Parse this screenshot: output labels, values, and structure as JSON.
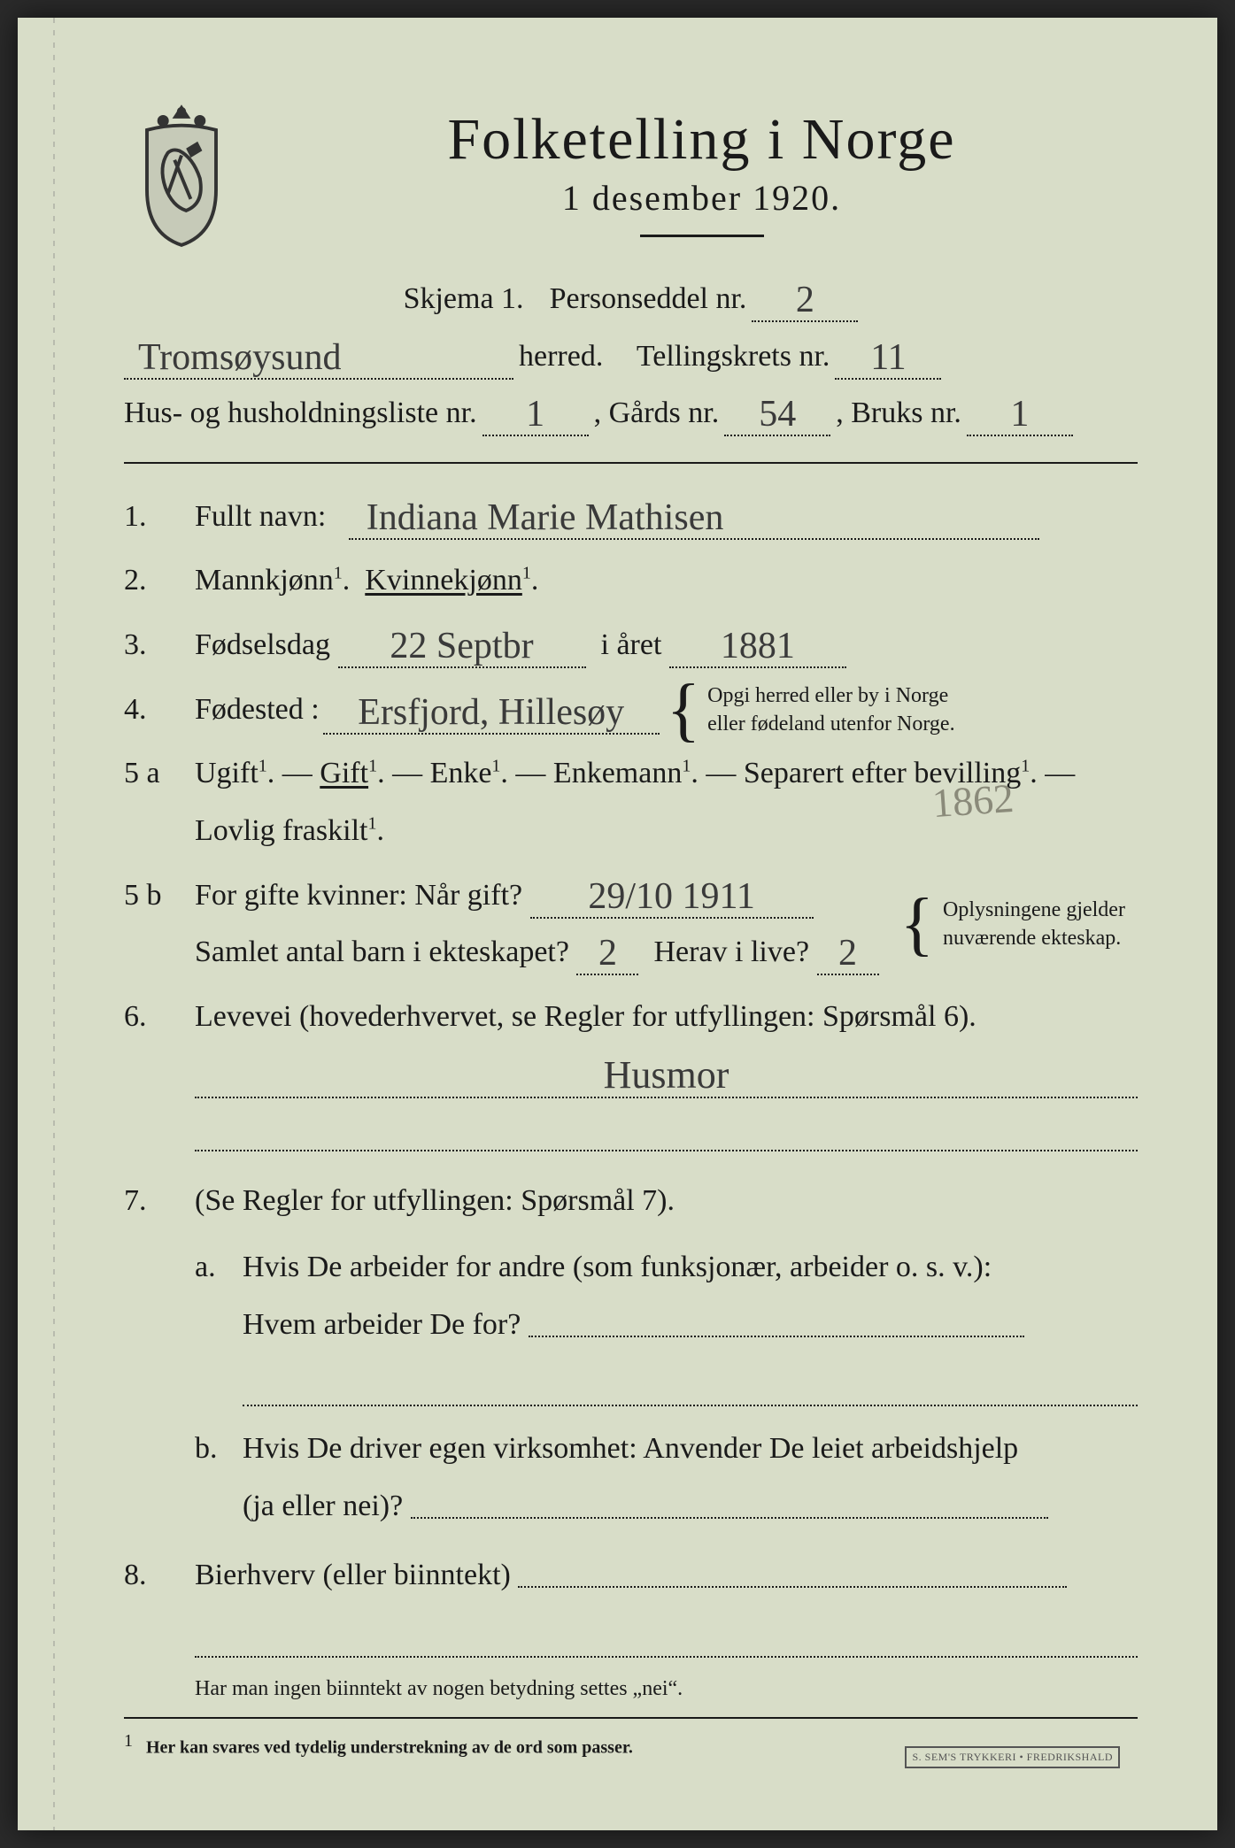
{
  "colors": {
    "paper": "#d8ddc8",
    "ink": "#1a1a1a",
    "handwriting": "#3a3a3a",
    "faint": "#8a8a7a"
  },
  "header": {
    "title": "Folketelling i Norge",
    "subtitle": "1 desember 1920."
  },
  "meta": {
    "skjema_label": "Skjema 1.",
    "personseddel_label": "Personseddel nr.",
    "personseddel_nr": "2",
    "herred_value": "Tromsøysund",
    "herred_label": "herred.",
    "tellingskrets_label": "Tellingskrets nr.",
    "tellingskrets_nr": "11",
    "hus_label": "Hus- og husholdningsliste nr.",
    "hus_nr": "1",
    "gards_label": ", Gårds nr.",
    "gards_nr": "54",
    "bruks_label": ", Bruks nr.",
    "bruks_nr": "1"
  },
  "q1": {
    "num": "1.",
    "label": "Fullt navn:",
    "value": "Indiana Marie Mathisen"
  },
  "q2": {
    "num": "2.",
    "opt_male": "Mannkjønn",
    "opt_female": "Kvinnekjønn",
    "sup": "1",
    "dot": "."
  },
  "q3": {
    "num": "3.",
    "label": "Fødselsdag",
    "day_value": "22 Septbr",
    "year_label": "i året",
    "year_value": "1881"
  },
  "q4": {
    "num": "4.",
    "label": "Fødested :",
    "value": "Ersfjord, Hillesøy",
    "sidenote": "Opgi herred eller by i Norge eller fødeland utenfor Norge."
  },
  "q5a": {
    "num": "5 a",
    "opts": [
      "Ugift",
      "Gift",
      "Enke",
      "Enkemann",
      "Separert efter bevilling",
      "Lovlig fraskilt"
    ],
    "sup": "1",
    "dash": "—",
    "selected_index": 1,
    "faint_annot": "1862"
  },
  "q5b": {
    "num": "5 b",
    "line1_label": "For gifte kvinner:  Når gift?",
    "line1_value": "29/10  1911",
    "line2_label": "Samlet antal barn i ekteskapet?",
    "line2_value": "2",
    "line2b_label": "Herav i live?",
    "line2b_value": "2",
    "sidenote": "Oplysningene gjelder nuværende ekteskap."
  },
  "q6": {
    "num": "6.",
    "label": "Levevei (hovederhvervet, se Regler for utfyllingen: Spørsmål 6).",
    "value": "Husmor"
  },
  "q7": {
    "num": "7.",
    "intro": "(Se Regler for utfyllingen:   Spørsmål 7).",
    "a_num": "a.",
    "a_text1": "Hvis De arbeider for andre (som funksjonær, arbeider o. s. v.):",
    "a_text2": "Hvem arbeider De for?",
    "b_num": "b.",
    "b_text1": "Hvis De driver egen virksomhet:  Anvender De leiet arbeidshjelp",
    "b_text2": "(ja eller nei)?"
  },
  "q8": {
    "num": "8.",
    "label": "Bierhverv (eller biinntekt)"
  },
  "footnote1": "Har man ingen biinntekt av nogen betydning settes „nei“.",
  "footnote2": "Her kan svares ved tydelig understrekning av de ord som passer.",
  "footnote2_sup": "1",
  "printer": "S. SEM'S TRYKKERI • FREDRIKSHALD"
}
